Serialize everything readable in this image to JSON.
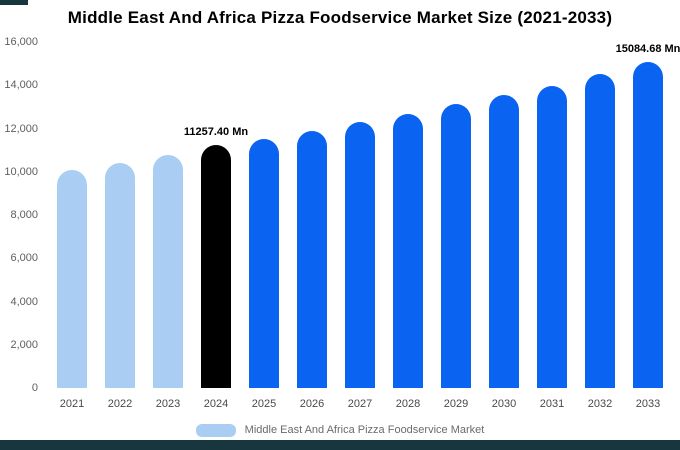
{
  "header": {
    "title": "Middle East And Africa Pizza Foodservice Market Size (2021-2033)"
  },
  "legend": {
    "label": "Middle East And Africa Pizza Foodservice Market"
  },
  "colors": {
    "historical": "#a9cdf3",
    "base": "#000000",
    "forecast": "#0b63f1",
    "footer": "#17363d"
  },
  "chart_data": {
    "type": "bar",
    "title": "Middle East And Africa Pizza Foodservice Market Size (2021-2033)",
    "categories": [
      "2021",
      "2022",
      "2023",
      "2024",
      "2025",
      "2026",
      "2027",
      "2028",
      "2029",
      "2030",
      "2031",
      "2032",
      "2033"
    ],
    "values": [
      10080,
      10420,
      10780,
      11257.4,
      11530,
      11900,
      12280,
      12650,
      13120,
      13540,
      13980,
      14500,
      15084.68
    ],
    "color_roles": [
      "historical",
      "historical",
      "historical",
      "base",
      "forecast",
      "forecast",
      "forecast",
      "forecast",
      "forecast",
      "forecast",
      "forecast",
      "forecast",
      "forecast"
    ],
    "unit": "Mn",
    "ylim": [
      0,
      16000
    ],
    "ytick_values": [
      0,
      2000,
      4000,
      6000,
      8000,
      10000,
      12000,
      14000,
      16000
    ],
    "grid": false,
    "legend_position": "bottom",
    "annotations": [
      {
        "index": 3,
        "text": "11257.40 Mn"
      },
      {
        "index": 12,
        "text": "15084.68 Mn"
      }
    ]
  }
}
